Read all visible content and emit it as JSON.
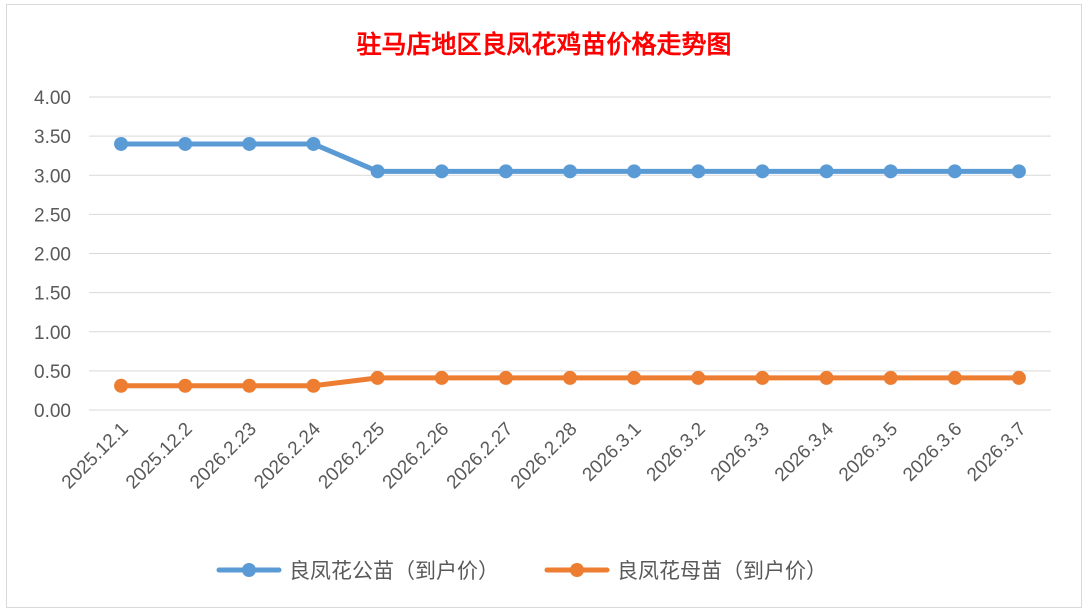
{
  "chart_data": {
    "type": "line",
    "title": "驻马店地区良凤花鸡苗价格走势图",
    "xlabel": "",
    "ylabel": "",
    "categories": [
      "2025.12.1",
      "2025.12.2",
      "2026.2.23",
      "2026.2.24",
      "2026.2.25",
      "2026.2.26",
      "2026.2.27",
      "2026.2.28",
      "2026.3.1",
      "2026.3.2",
      "2026.3.3",
      "2026.3.4",
      "2026.3.5",
      "2026.3.6",
      "2026.3.7"
    ],
    "ylim": [
      0,
      4
    ],
    "yticks": [
      "0.00",
      "0.50",
      "1.00",
      "1.50",
      "2.00",
      "2.50",
      "3.00",
      "3.50",
      "4.00"
    ],
    "grid": true,
    "legend_position": "bottom",
    "series": [
      {
        "name": "良凤花公苗（到户价）",
        "color": "#5b9bd5",
        "values": [
          3.4,
          3.4,
          3.4,
          3.4,
          3.05,
          3.05,
          3.05,
          3.05,
          3.05,
          3.05,
          3.05,
          3.05,
          3.05,
          3.05,
          3.05
        ]
      },
      {
        "name": "良凤花母苗（到户价）",
        "color": "#ed7d31",
        "values": [
          0.31,
          0.31,
          0.31,
          0.31,
          0.41,
          0.41,
          0.41,
          0.41,
          0.41,
          0.41,
          0.41,
          0.41,
          0.41,
          0.41,
          0.41
        ]
      }
    ],
    "colors": {
      "title": "#ff0000",
      "grid": "#d9d9d9",
      "text": "#595959"
    }
  }
}
